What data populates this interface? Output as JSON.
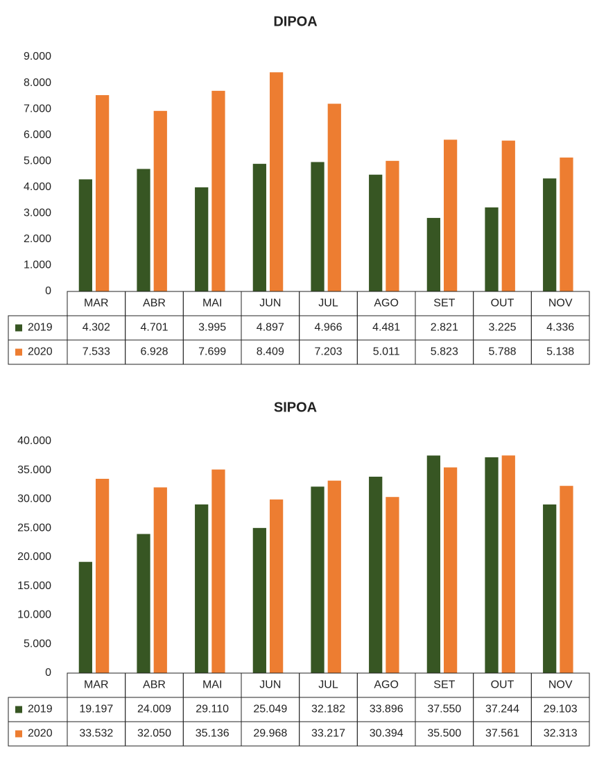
{
  "chart_data": [
    {
      "type": "bar",
      "title": "DIPOA",
      "categories": [
        "MAR",
        "ABR",
        "MAI",
        "JUN",
        "JUL",
        "AGO",
        "SET",
        "OUT",
        "NOV"
      ],
      "series": [
        {
          "name": "2019",
          "color": "#375623",
          "values": [
            4302,
            4701,
            3995,
            4897,
            4966,
            4481,
            2821,
            3225,
            4336
          ],
          "value_labels": [
            "4.302",
            "4.701",
            "3.995",
            "4.897",
            "4.966",
            "4.481",
            "2.821",
            "3.225",
            "4.336"
          ]
        },
        {
          "name": "2020",
          "color": "#ed7d31",
          "values": [
            7533,
            6928,
            7699,
            8409,
            7203,
            5011,
            5823,
            5788,
            5138
          ],
          "value_labels": [
            "7.533",
            "6.928",
            "7.699",
            "8.409",
            "7.203",
            "5.011",
            "5.823",
            "5.788",
            "5.138"
          ]
        }
      ],
      "ylim": [
        0,
        9000
      ],
      "yticks": [
        0,
        {
          "value": 1000,
          "label": "1.000"
        },
        {
          "value": 2000,
          "label": "2.000"
        },
        {
          "value": 3000,
          "label": "3.000"
        },
        {
          "value": 4000,
          "label": "4.000"
        },
        {
          "value": 5000,
          "label": "5.000"
        },
        {
          "value": 6000,
          "label": "6.000"
        },
        {
          "value": 7000,
          "label": "7.000"
        },
        {
          "value": 8000,
          "label": "8.000"
        },
        {
          "value": 9000,
          "label": "9.000"
        }
      ],
      "grid": false
    },
    {
      "type": "bar",
      "title": "SIPOA",
      "categories": [
        "MAR",
        "ABR",
        "MAI",
        "JUN",
        "JUL",
        "AGO",
        "SET",
        "OUT",
        "NOV"
      ],
      "series": [
        {
          "name": "2019",
          "color": "#375623",
          "values": [
            19197,
            24009,
            29110,
            25049,
            32182,
            33896,
            37550,
            37244,
            29103
          ],
          "value_labels": [
            "19.197",
            "24.009",
            "29.110",
            "25.049",
            "32.182",
            "33.896",
            "37.550",
            "37.244",
            "29.103"
          ]
        },
        {
          "name": "2020",
          "color": "#ed7d31",
          "values": [
            33532,
            32050,
            35136,
            29968,
            33217,
            30394,
            35500,
            37561,
            32313
          ],
          "value_labels": [
            "33.532",
            "32.050",
            "35.136",
            "29.968",
            "33.217",
            "30.394",
            "35.500",
            "37.561",
            "32.313"
          ]
        }
      ],
      "ylim": [
        0,
        40000
      ],
      "yticks": [
        0,
        {
          "value": 5000,
          "label": "5.000"
        },
        {
          "value": 10000,
          "label": "10.000"
        },
        {
          "value": 15000,
          "label": "15.000"
        },
        {
          "value": 20000,
          "label": "20.000"
        },
        {
          "value": 25000,
          "label": "25.000"
        },
        {
          "value": 30000,
          "label": "30.000"
        },
        {
          "value": 35000,
          "label": "35.000"
        },
        {
          "value": 40000,
          "label": "40.000"
        }
      ],
      "grid": false
    }
  ]
}
